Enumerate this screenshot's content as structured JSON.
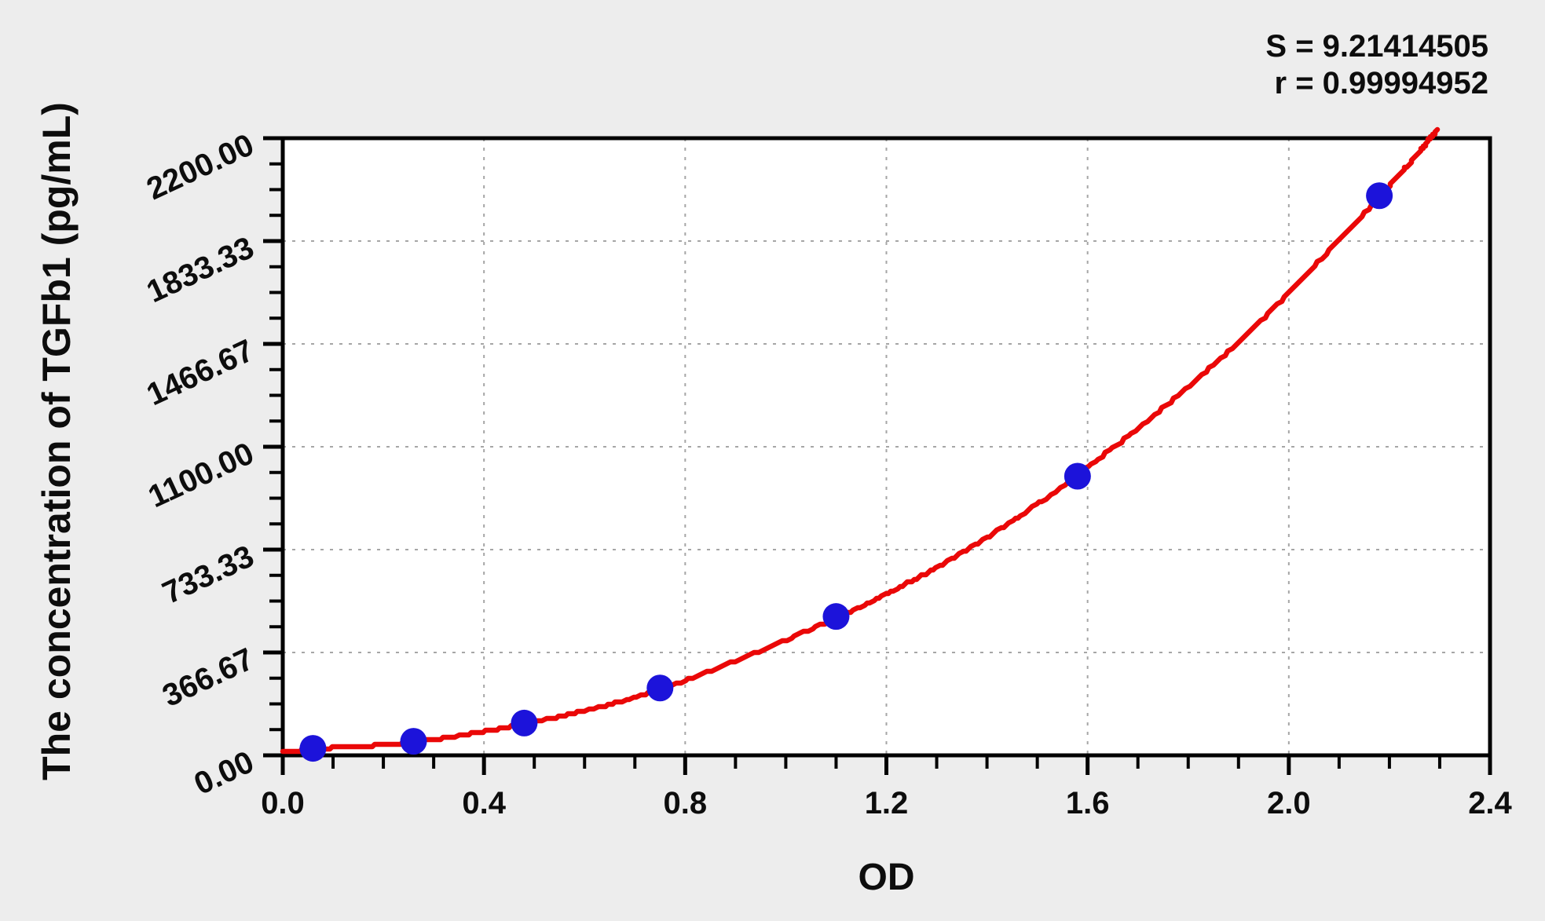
{
  "annotations": {
    "s_line": "S = 9.21414505",
    "r_line": "r = 0.99994952"
  },
  "chart_data": {
    "type": "scatter",
    "title": "",
    "xlabel": "OD",
    "ylabel": "The concentration of TGFb1 (pg/mL)",
    "xlim": [
      0,
      2.4
    ],
    "ylim": [
      0,
      2200
    ],
    "x_major_ticks": [
      0.0,
      0.4,
      0.8,
      1.2,
      1.6,
      2.0,
      2.4
    ],
    "x_tick_labels": [
      "0.0",
      "0.4",
      "0.8",
      "1.2",
      "1.6",
      "2.0",
      "2.4"
    ],
    "x_minor_step": 0.1,
    "y_major_ticks": [
      0,
      366.67,
      733.33,
      1100.0,
      1466.67,
      1833.33,
      2200.0
    ],
    "y_tick_labels": [
      "0.00",
      "366.67",
      "733.33",
      "1100.00",
      "1466.67",
      "1833.33",
      "2200.00"
    ],
    "y_minor_divisions": 4,
    "grid": "dashed-at-major-ticks",
    "legend": "none",
    "stats": {
      "S": "9.21414505",
      "r": "0.99994952"
    },
    "series": [
      {
        "name": "standard-points",
        "type": "scatter",
        "color": "#1c13da",
        "points": [
          {
            "x": 0.06,
            "y": 25
          },
          {
            "x": 0.26,
            "y": 50
          },
          {
            "x": 0.48,
            "y": 115
          },
          {
            "x": 0.75,
            "y": 240
          },
          {
            "x": 1.1,
            "y": 495
          },
          {
            "x": 1.58,
            "y": 995
          },
          {
            "x": 2.18,
            "y": 1995
          }
        ]
      },
      {
        "name": "fit-curve",
        "type": "line",
        "color": "#ea0808",
        "points": [
          {
            "x": 0.0,
            "y": 10
          },
          {
            "x": 0.06,
            "y": 22
          },
          {
            "x": 0.26,
            "y": 48
          },
          {
            "x": 0.48,
            "y": 112
          },
          {
            "x": 0.75,
            "y": 235
          },
          {
            "x": 1.1,
            "y": 490
          },
          {
            "x": 1.34,
            "y": 712
          },
          {
            "x": 1.58,
            "y": 1000
          },
          {
            "x": 1.88,
            "y": 1440
          },
          {
            "x": 2.18,
            "y": 1990
          },
          {
            "x": 2.295,
            "y": 2230
          }
        ]
      }
    ]
  },
  "colors": {
    "background": "#ededed",
    "plot_background": "#ffffff",
    "axis": "#000000",
    "grid": "#a6a6a6",
    "curve": "#ea0808",
    "points": "#1c13da",
    "text": "#0d0d0d"
  }
}
